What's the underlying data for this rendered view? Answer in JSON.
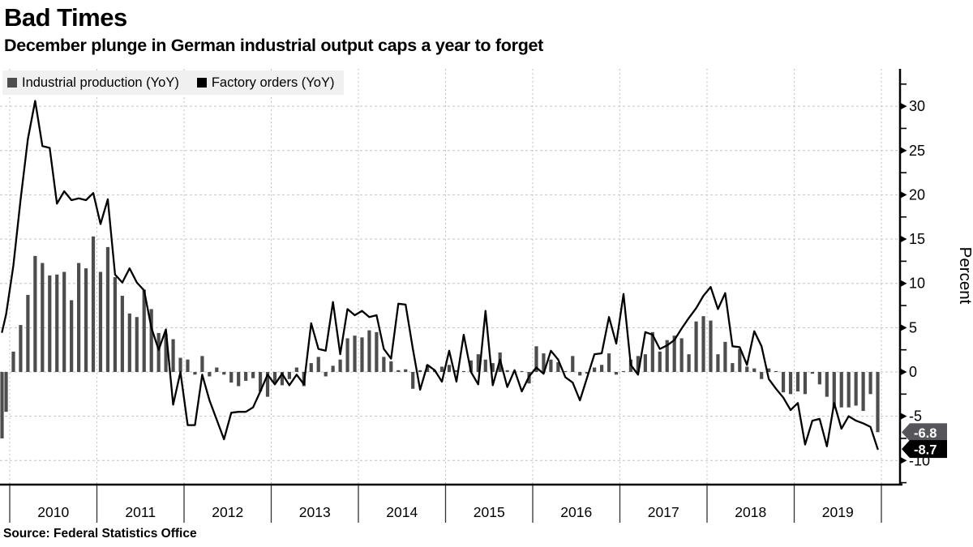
{
  "header": {
    "title": "Bad Times",
    "subtitle": "December plunge in German industrial output caps a year to forget"
  },
  "source": "Source: Federal Statistics Office",
  "legend": {
    "items": [
      {
        "label": "Industrial production (YoY)",
        "color": "#4d4d4d"
      },
      {
        "label": "Factory orders (YoY)",
        "color": "#000000"
      }
    ]
  },
  "chart_data": {
    "type": "bar+line",
    "frequency": "monthly",
    "start_month": "2009-11",
    "end_month": "2019-12",
    "x_year_labels": [
      "2010",
      "2011",
      "2012",
      "2013",
      "2014",
      "2015",
      "2016",
      "2017",
      "2018",
      "2019"
    ],
    "ylabel": "Percent",
    "ylim": [
      -12.7,
      34.3
    ],
    "yticks": [
      -10,
      -5,
      0,
      5,
      10,
      15,
      20,
      25,
      30
    ],
    "minor_tick_step": 2.5,
    "grid": "dashed",
    "colors": {
      "bars": "#4d4d4d",
      "line": "#000000",
      "grid": "#c3c3c3",
      "axis": "#000000"
    },
    "series": [
      {
        "name": "Industrial production (YoY)",
        "type": "bar",
        "color": "#4d4d4d",
        "values": [
          -7.5,
          -4.5,
          2.3,
          5.3,
          8.7,
          13.1,
          12.3,
          10.9,
          11.0,
          11.3,
          8.1,
          12.3,
          11.7,
          15.3,
          11.3,
          14.1,
          10.7,
          8.6,
          6.6,
          6.2,
          9.3,
          7.1,
          4.4,
          4.3,
          3.7,
          1.6,
          1.4,
          -0.3,
          1.8,
          -0.5,
          0.5,
          -0.3,
          -1.2,
          -1.6,
          -1.0,
          -0.7,
          -2.2,
          -2.8,
          -1.3,
          -1.5,
          -0.8,
          0.5,
          -1.6,
          1.0,
          1.7,
          -0.5,
          0.7,
          1.4,
          3.8,
          4.1,
          3.9,
          4.7,
          4.5,
          1.7,
          1.2,
          0.2,
          0.3,
          -1.9,
          0.2,
          0.8,
          0.2,
          0.6,
          0.8,
          0.2,
          0.1,
          1.3,
          2.0,
          1.4,
          1.0,
          2.2,
          0.2,
          0.1,
          0.1,
          -1.3,
          2.9,
          2.1,
          1.4,
          1.1,
          0.1,
          1.8,
          -0.4,
          -0.2,
          0.5,
          0.8,
          2.1,
          -0.3,
          0.1,
          1.4,
          1.8,
          2.0,
          4.5,
          2.3,
          3.6,
          4.1,
          3.8,
          2.0,
          5.7,
          6.3,
          5.8,
          2.0,
          3.4,
          1.0,
          2.6,
          0.6,
          0.4,
          -0.8,
          0.4,
          0.1,
          -2.3,
          -2.5,
          -2.2,
          -2.5,
          -0.2,
          -1.4,
          -2.8,
          -4.1,
          -4.0,
          -4.0,
          -3.8,
          -4.4,
          -2.5,
          -6.8
        ]
      },
      {
        "name": "Factory orders (YoY)",
        "type": "line",
        "color": "#000000",
        "values": [
          4.5,
          6.5,
          12.0,
          19.5,
          26.3,
          30.6,
          25.5,
          25.3,
          19.0,
          20.4,
          19.4,
          19.6,
          19.4,
          20.2,
          16.7,
          19.5,
          11.0,
          10.1,
          11.7,
          10.1,
          9.2,
          5.0,
          2.5,
          4.8,
          -3.7,
          0.0,
          -6.0,
          -6.0,
          -0.3,
          -3.2,
          -5.4,
          -7.6,
          -4.6,
          -4.5,
          -4.5,
          -4.0,
          -2.2,
          -0.3,
          -1.4,
          -0.2,
          -1.5,
          -0.3,
          -1.4,
          5.5,
          2.6,
          2.4,
          7.9,
          2.0,
          7.1,
          6.4,
          6.9,
          6.2,
          6.4,
          2.6,
          1.5,
          7.7,
          7.6,
          2.6,
          -2.0,
          0.8,
          0.2,
          -1.1,
          2.4,
          -1.1,
          4.2,
          0.0,
          -1.4,
          6.9,
          -1.5,
          1.4,
          -1.7,
          0.2,
          -2.2,
          -0.5,
          0.5,
          -0.2,
          2.4,
          1.4,
          -0.6,
          -1.2,
          -3.2,
          -0.6,
          2.0,
          2.1,
          6.2,
          3.2,
          8.8,
          0.8,
          -0.3,
          4.5,
          4.2,
          2.6,
          3.0,
          3.6,
          4.9,
          6.1,
          7.2,
          8.6,
          9.6,
          7.1,
          8.9,
          2.9,
          2.8,
          0.8,
          4.6,
          2.9,
          -0.8,
          -1.9,
          -2.9,
          -4.3,
          -3.5,
          -8.2,
          -5.5,
          -5.3,
          -8.4,
          -3.5,
          -6.4,
          -5.0,
          -5.5,
          -5.8,
          -6.2,
          -8.7
        ]
      }
    ],
    "end_labels": [
      {
        "text": "-6.8",
        "value": -6.8,
        "bg": "#56565a",
        "fg": "#ffffff"
      },
      {
        "text": "-8.7",
        "value": -8.7,
        "bg": "#000000",
        "fg": "#ffffff"
      }
    ]
  }
}
